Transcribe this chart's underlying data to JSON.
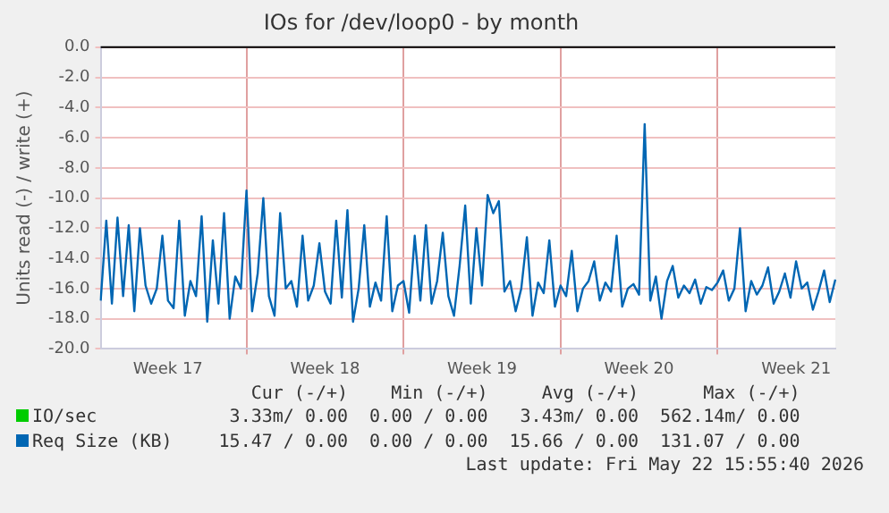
{
  "chart_data": {
    "type": "line",
    "title": "IOs for /dev/loop0 - by month",
    "ylabel": "Units read (-) / write (+)",
    "categories": [
      null,
      null,
      null,
      null,
      null,
      null,
      null,
      null,
      null,
      null,
      null,
      null,
      "Week 17",
      null,
      null,
      null,
      null,
      null,
      null,
      null,
      null,
      null,
      null,
      null,
      null,
      null,
      null,
      null,
      null,
      null,
      null,
      null,
      null,
      null,
      null,
      null,
      null,
      null,
      null,
      null,
      "Week 18",
      null,
      null,
      null,
      null,
      null,
      null,
      null,
      null,
      null,
      null,
      null,
      null,
      null,
      null,
      null,
      null,
      null,
      null,
      null,
      null,
      null,
      null,
      null,
      null,
      null,
      null,
      null,
      "Week 19",
      null,
      null,
      null,
      null,
      null,
      null,
      null,
      null,
      null,
      null,
      null,
      null,
      null,
      null,
      null,
      null,
      null,
      null,
      null,
      null,
      null,
      null,
      null,
      null,
      null,
      null,
      null,
      "Week 20",
      null,
      null,
      null,
      null,
      null,
      null,
      null,
      null,
      null,
      null,
      null,
      null,
      null,
      null,
      null,
      null,
      null,
      null,
      null,
      null,
      null,
      null,
      null,
      null,
      null,
      null,
      null,
      "Week 21",
      null,
      null,
      null,
      null,
      null,
      null,
      null
    ],
    "ylim": [
      -20,
      0
    ],
    "yticks": [
      {
        "value": -20,
        "label": "-20.0"
      },
      {
        "value": -18,
        "label": "-18.0"
      },
      {
        "value": -16,
        "label": "-16.0"
      },
      {
        "value": -14,
        "label": "-14.0"
      },
      {
        "value": -12,
        "label": "-12.0"
      },
      {
        "value": -10,
        "label": "-10.0"
      },
      {
        "value": -8,
        "label": "-8.0"
      },
      {
        "value": -6,
        "label": "-6.0"
      },
      {
        "value": -4,
        "label": "-4.0"
      },
      {
        "value": -2,
        "label": "-2.0"
      },
      {
        "value": 0,
        "label": "0.0"
      }
    ],
    "grid": true,
    "legend": "bottom",
    "ref_lines": [
      {
        "axis": "y",
        "value": 0,
        "color": "#000000"
      }
    ],
    "series": [
      {
        "name": "IO/sec",
        "color": "#00cc00",
        "values": [
          null,
          null,
          null,
          null,
          null,
          null,
          null,
          null,
          null,
          null,
          null,
          null,
          null,
          null,
          null,
          null,
          null,
          null,
          null,
          null,
          null,
          null,
          null,
          null,
          null,
          null,
          null,
          null,
          null,
          null,
          null,
          null,
          null,
          null,
          null,
          null,
          null,
          null,
          null,
          null,
          null,
          null,
          null,
          null,
          null,
          null,
          null,
          null,
          null,
          null,
          null,
          null,
          null,
          null,
          null,
          null,
          null,
          null,
          null,
          null,
          null,
          null,
          null,
          null,
          null,
          null,
          null,
          null,
          null,
          null,
          null,
          null,
          null,
          null,
          null,
          null,
          null,
          null,
          null,
          null,
          null,
          null,
          null,
          null,
          null,
          null,
          null,
          null,
          null,
          null,
          null,
          null,
          null,
          null,
          null,
          null,
          null,
          null,
          null,
          null,
          null,
          null,
          null,
          null,
          null,
          null,
          null,
          null,
          null,
          null,
          null,
          null,
          null,
          null,
          null,
          null,
          null,
          null,
          null,
          null,
          null,
          null,
          null,
          null,
          null,
          null,
          null,
          null,
          null,
          null,
          null,
          null
        ]
      },
      {
        "name": "Req Size (KB)",
        "color": "#0066b3",
        "values": [
          -16.8,
          -11.5,
          -17,
          -11.3,
          -16.5,
          -11.8,
          -17.5,
          -12,
          -15.8,
          -17,
          -16,
          -12.5,
          -16.8,
          -17.3,
          -11.5,
          -17.8,
          -15.5,
          -16.5,
          -11.2,
          -18.2,
          -12.8,
          -17,
          -11,
          -18,
          -15.2,
          -16,
          -9.5,
          -17.5,
          -15,
          -10,
          -16.5,
          -17.8,
          -11,
          -16,
          -15.5,
          -17.2,
          -12.5,
          -16.8,
          -15.8,
          -13,
          -16.2,
          -17,
          -11.5,
          -16.6,
          -10.8,
          -18.2,
          -16,
          -11.8,
          -17.2,
          -15.6,
          -16.8,
          -11.2,
          -17.5,
          -15.8,
          -15.5,
          -17.6,
          -12.5,
          -16.8,
          -11.8,
          -17,
          -15.5,
          -12.3,
          -16.5,
          -17.8,
          -14.5,
          -10.5,
          -17,
          -12,
          -15.8,
          -9.8,
          -11,
          -10.2,
          -16.2,
          -15.5,
          -17.5,
          -16,
          -12.6,
          -17.8,
          -15.6,
          -16.3,
          -12.8,
          -17.2,
          -15.8,
          -16.5,
          -13.5,
          -17.5,
          -16,
          -15.5,
          -14.2,
          -16.8,
          -15.6,
          -16.2,
          -12.5,
          -17.2,
          -16,
          -15.7,
          -16.4,
          -5.1,
          -16.8,
          -15.2,
          -18,
          -15.5,
          -14.5,
          -16.6,
          -15.8,
          -16.3,
          -15.4,
          -17,
          -15.9,
          -16.1,
          -15.6,
          -14.8,
          -16.8,
          -16,
          -12,
          -17.5,
          -15.5,
          -16.4,
          -15.8,
          -14.6,
          -17,
          -16.2,
          -15,
          -16.6,
          -14.2,
          -16,
          -15.6,
          -17.4,
          -16.2,
          -14.8,
          -16.9,
          -15.4
        ]
      }
    ],
    "annotations": [
      "Cur (-/+)",
      "Min (-/+)",
      "Avg (-/+)",
      "Max (-/+)",
      "3.33m/ 0.00",
      "0.00 / 0.00",
      "3.43m/ 0.00",
      "562.14m/ 0.00",
      "15.47 / 0.00",
      "0.00 / 0.00",
      "15.66 / 0.00",
      "131.07 / 0.00",
      "Last update: Fri May 22 15:55:40 2026"
    ]
  }
}
